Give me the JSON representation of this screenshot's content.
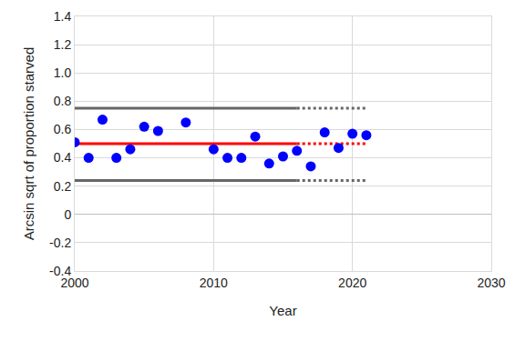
{
  "chart_data": {
    "type": "scatter",
    "x_label": "Year",
    "y_label": "Arcsin sqrt of proportion starved",
    "xlim": [
      2000,
      2030
    ],
    "xticks": [
      2000,
      2010,
      2020,
      2030
    ],
    "ylim": [
      -0.4,
      1.4
    ],
    "yticks": [
      -0.4,
      -0.2,
      0,
      0.2,
      0.4,
      0.6,
      0.8,
      {
        "value": 1,
        "label": "1.0"
      },
      1.2,
      1.4
    ],
    "grid": true,
    "series": [
      {
        "type": "line",
        "color": "#666666",
        "line_style": "solid",
        "x": [
          2000,
          2016
        ],
        "values": [
          0.75,
          0.75
        ]
      },
      {
        "type": "line",
        "color": "#666666",
        "line_style": "dotted",
        "x": [
          2016,
          2021
        ],
        "values": [
          0.75,
          0.75
        ]
      },
      {
        "type": "line",
        "color": "#666666",
        "line_style": "solid",
        "x": [
          2000,
          2016
        ],
        "values": [
          0.24,
          0.24
        ]
      },
      {
        "type": "line",
        "color": "#666666",
        "line_style": "dotted",
        "x": [
          2016,
          2021
        ],
        "values": [
          0.24,
          0.24
        ]
      },
      {
        "type": "line",
        "color": "#ff0000",
        "line_style": "solid",
        "x": [
          2000,
          2016
        ],
        "values": [
          0.5,
          0.5
        ]
      },
      {
        "type": "line",
        "color": "#ff0000",
        "line_style": "dotted",
        "x": [
          2016,
          2021
        ],
        "values": [
          0.5,
          0.5
        ]
      },
      {
        "type": "scatter",
        "color": "#0000ff",
        "marker": "circle",
        "x": [
          2000,
          2001,
          2002,
          2003,
          2004,
          2005,
          2006,
          2008,
          2010,
          2011,
          2012,
          2013,
          2014,
          2015,
          2016,
          2017,
          2018,
          2019,
          2020,
          2021
        ],
        "values": [
          0.51,
          0.4,
          0.67,
          0.4,
          0.46,
          0.62,
          0.59,
          0.65,
          0.46,
          0.4,
          0.4,
          0.55,
          0.36,
          0.41,
          0.45,
          0.34,
          0.58,
          0.47,
          0.57,
          0.56
        ]
      }
    ]
  }
}
